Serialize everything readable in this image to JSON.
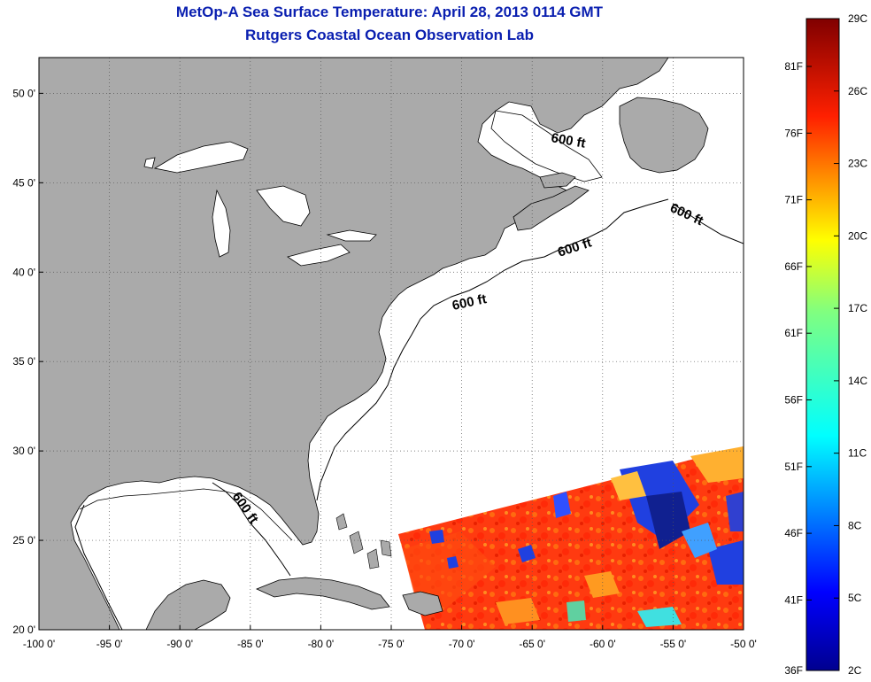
{
  "title": "MetOp-A Sea Surface Temperature:  April 28, 2013 0114 GMT",
  "subtitle": "Rutgers Coastal Ocean Observation Lab",
  "colors": {
    "land": "#aaaaaa",
    "title": "#0a1fb0",
    "grid": "#555555"
  },
  "map": {
    "lon_range": [
      -100,
      -50
    ],
    "lat_range": [
      20,
      52
    ],
    "lon_ticks": [
      {
        "value": -100,
        "label": "-100 0'"
      },
      {
        "value": -95,
        "label": "-95 0'"
      },
      {
        "value": -90,
        "label": "-90 0'"
      },
      {
        "value": -85,
        "label": "-85 0'"
      },
      {
        "value": -80,
        "label": "-80 0'"
      },
      {
        "value": -75,
        "label": "-75 0'"
      },
      {
        "value": -70,
        "label": "-70 0'"
      },
      {
        "value": -65,
        "label": "-65 0'"
      },
      {
        "value": -60,
        "label": "-60 0'"
      },
      {
        "value": -55,
        "label": "-55 0'"
      },
      {
        "value": -50,
        "label": "-50 0'"
      }
    ],
    "lat_ticks": [
      {
        "value": 50,
        "label": "50 0'"
      },
      {
        "value": 45,
        "label": "45 0'"
      },
      {
        "value": 40,
        "label": "40 0'"
      },
      {
        "value": 35,
        "label": "35 0'"
      },
      {
        "value": 30,
        "label": "30 0'"
      },
      {
        "value": 25,
        "label": "25 0'"
      },
      {
        "value": 20,
        "label": "20 0'"
      }
    ],
    "contour_labels": [
      "600 ft",
      "600 ft",
      "600 ft",
      "600 ft",
      "600 ft"
    ]
  },
  "colorbar": {
    "range_c": [
      2,
      29
    ],
    "celsius_ticks": [
      "29C",
      "26C",
      "23C",
      "20C",
      "17C",
      "14C",
      "11C",
      "8C",
      "5C",
      "2C"
    ],
    "fahrenheit_ticks": [
      "81F",
      "76F",
      "71F",
      "66F",
      "61F",
      "56F",
      "51F",
      "46F",
      "41F",
      "36F"
    ]
  }
}
